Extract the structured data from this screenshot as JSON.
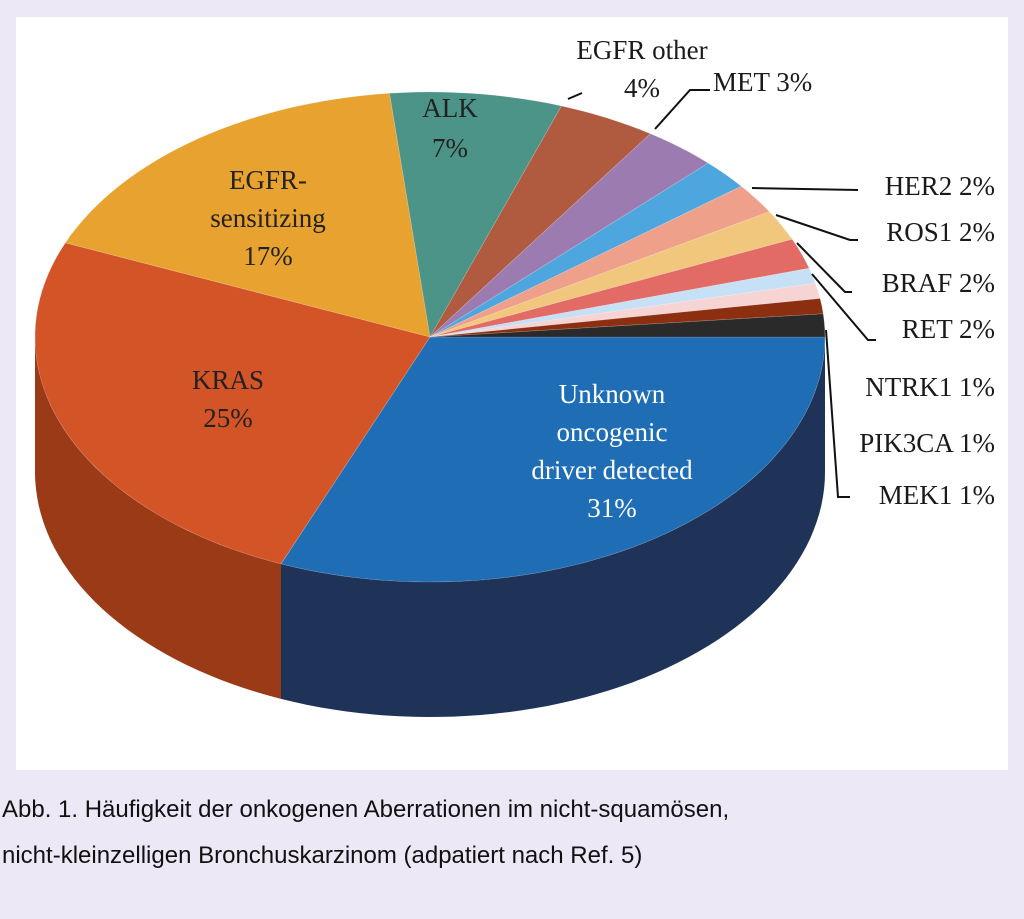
{
  "chart_data": {
    "type": "pie",
    "style": "3d",
    "title": "",
    "slices": [
      {
        "label": "Unknown oncogenic driver detected",
        "label_lines": [
          "Unknown",
          "oncogenic",
          "driver detected",
          "31%"
        ],
        "value": 31,
        "color": "#1f6db5",
        "side": "#1f3358",
        "inside": true,
        "text_color": "#ffffff"
      },
      {
        "label": "KRAS",
        "label_lines": [
          "KRAS",
          "25%"
        ],
        "value": 25,
        "color": "#d35427",
        "side": "#9a3a16",
        "inside": true,
        "text_color": "#222222"
      },
      {
        "label": "EGFR-sensitizing",
        "label_lines": [
          "EGFR-",
          "sensitizing",
          "17%"
        ],
        "value": 17,
        "color": "#e8a230",
        "side": "#a56d16",
        "inside": true,
        "text_color": "#222222"
      },
      {
        "label": "ALK",
        "label_lines": [
          "ALK",
          "7%"
        ],
        "value": 7,
        "color": "#4d9488",
        "side": "#2f5f57",
        "inside": true,
        "text_color": "#222222"
      },
      {
        "label": "EGFR other",
        "label_lines": [
          "EGFR other",
          "4%"
        ],
        "value": 4,
        "color": "#b05a40",
        "side": "#7a3a28",
        "inside": false
      },
      {
        "label": "MET",
        "label_lines": [
          "MET 3%"
        ],
        "value": 3,
        "color": "#9b7bb0",
        "side": "#6a5080",
        "inside": false
      },
      {
        "label": "HER2",
        "label_lines": [
          "HER2 2%"
        ],
        "value": 2,
        "color": "#4ea6de",
        "side": "#2b6f9e",
        "inside": false
      },
      {
        "label": "ROS1",
        "label_lines": [
          "ROS1 2%"
        ],
        "value": 2,
        "color": "#efa08a",
        "side": "#b56a58",
        "inside": false
      },
      {
        "label": "BRAF",
        "label_lines": [
          "BRAF 2%"
        ],
        "value": 2,
        "color": "#f1c77d",
        "side": "#b8914a",
        "inside": false
      },
      {
        "label": "RET",
        "label_lines": [
          "RET 2%"
        ],
        "value": 2,
        "color": "#e36b66",
        "side": "#a8403c",
        "inside": false
      },
      {
        "label": "NTRK1",
        "label_lines": [
          "NTRK1 1%"
        ],
        "value": 1,
        "color": "#c6e0f5",
        "side": "#8eaac2",
        "inside": false
      },
      {
        "label": "PIK3CA",
        "label_lines": [
          "PIK3CA 1%"
        ],
        "value": 1,
        "color": "#f6d4d3",
        "side": "#c29f9e",
        "inside": false
      },
      {
        "label": "MEK1",
        "label_lines": [
          "MEK1 1%"
        ],
        "value": 1,
        "color": "#8c2e10",
        "side": "#5a1c08",
        "inside": false
      },
      {
        "label": "",
        "label_lines": [],
        "value": 1.5,
        "color": "#2a2a2a",
        "side": "#111111",
        "inside": false
      }
    ]
  },
  "caption": {
    "line1": "Abb. 1. Häufigkeit der onkogenen Aberrationen im nicht-squamösen,",
    "line2": "nicht-kleinzelligen Bronchuskarzinom (adpatiert nach Ref. 5)"
  },
  "colors": {
    "background": "#ece8f5",
    "panel": "#ffffff"
  }
}
